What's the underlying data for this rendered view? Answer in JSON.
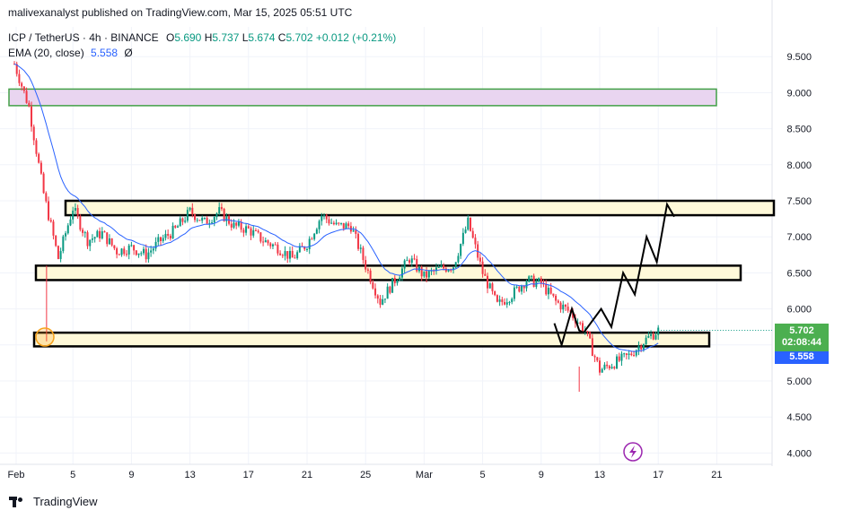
{
  "publisher": "malivexanalyst published on TradingView.com, Mar 15, 2025 05:51 UTC",
  "legend": {
    "symbol": "ICP / TetherUS · 4h · BINANCE",
    "o_label": "O",
    "o": "5.690",
    "h_label": "H",
    "h": "5.737",
    "l_label": "L",
    "l": "5.674",
    "c_label": "C",
    "c": "5.702",
    "change": "+0.012 (+0.21%)",
    "ema_label": "EMA (20, close)",
    "ema_value": "5.558",
    "ema_extra": "Ø"
  },
  "price_tags": {
    "last_price": "5.702",
    "countdown": "02:08:44",
    "ema": "5.558"
  },
  "footer": {
    "brand": "TradingView"
  },
  "colors": {
    "up": "#089981",
    "down": "#f23645",
    "ema": "#2962ff",
    "zone_fill": "#fff9d9",
    "top_zone_fill": "#e9d5f0",
    "top_zone_border": "#43a047",
    "last_price_bg": "#4caf50",
    "ema_bg": "#2962ff",
    "marker": "#f7a21b",
    "icon": "#9c27b0"
  },
  "chart_data": {
    "type": "candlestick",
    "symbol": "ICP / TetherUS",
    "interval": "4h",
    "exchange": "BINANCE",
    "y_ticks": [
      "9.500",
      "9.000",
      "8.500",
      "8.000",
      "7.500",
      "7.000",
      "6.500",
      "6.000",
      "5.500",
      "5.000",
      "4.500",
      "4.000"
    ],
    "x_ticks": [
      "Feb",
      "5",
      "9",
      "13",
      "17",
      "21",
      "25",
      "Mar",
      "5",
      "9",
      "13",
      "17",
      "21"
    ],
    "ylim": [
      3.8,
      9.9
    ],
    "price_path": [
      [
        0,
        9.4
      ],
      [
        1,
        8.8
      ],
      [
        2,
        7.6
      ],
      [
        3,
        6.7
      ],
      [
        4,
        7.4
      ],
      [
        5,
        6.95
      ],
      [
        6,
        7.05
      ],
      [
        7,
        6.8
      ],
      [
        8,
        6.85
      ],
      [
        9,
        6.75
      ],
      [
        10,
        6.95
      ],
      [
        11,
        7.1
      ],
      [
        12,
        7.35
      ],
      [
        13,
        7.2
      ],
      [
        14,
        7.35
      ],
      [
        15,
        7.15
      ],
      [
        16,
        7.1
      ],
      [
        17,
        6.95
      ],
      [
        18,
        6.85
      ],
      [
        19,
        6.7
      ],
      [
        20,
        6.9
      ],
      [
        21,
        7.3
      ],
      [
        22,
        7.15
      ],
      [
        23,
        7.15
      ],
      [
        24,
        6.6
      ],
      [
        25,
        6.1
      ],
      [
        26,
        6.4
      ],
      [
        27,
        6.7
      ],
      [
        28,
        6.45
      ],
      [
        29,
        6.55
      ],
      [
        30,
        6.6
      ],
      [
        31,
        7.2
      ],
      [
        32,
        6.5
      ],
      [
        33,
        6.05
      ],
      [
        34,
        6.2
      ],
      [
        35,
        6.4
      ],
      [
        36,
        6.35
      ],
      [
        37,
        6.1
      ],
      [
        38,
        5.95
      ],
      [
        39,
        5.7
      ],
      [
        40,
        5.15
      ],
      [
        41,
        5.25
      ],
      [
        42,
        5.35
      ],
      [
        43,
        5.55
      ],
      [
        44,
        5.702
      ]
    ],
    "ema_last": 5.558,
    "zones": [
      {
        "name": "supply-zone-top",
        "from": 8.82,
        "to": 9.05
      },
      {
        "name": "resistance-zone",
        "from": 7.3,
        "to": 7.5
      },
      {
        "name": "mid-zone",
        "from": 6.4,
        "to": 6.6
      },
      {
        "name": "support-zone",
        "from": 5.48,
        "to": 5.67
      }
    ],
    "projection": [
      [
        9.4,
        5.8
      ],
      [
        9.9,
        5.5
      ],
      [
        10.6,
        6.0
      ],
      [
        11.1,
        5.7
      ],
      [
        11.4,
        5.67
      ],
      [
        12.6,
        6.0
      ],
      [
        13.3,
        5.75
      ],
      [
        14.1,
        6.5
      ],
      [
        14.9,
        6.2
      ],
      [
        15.7,
        7.0
      ],
      [
        16.4,
        6.65
      ],
      [
        17.1,
        7.45
      ],
      [
        17.6,
        7.28
      ]
    ]
  }
}
